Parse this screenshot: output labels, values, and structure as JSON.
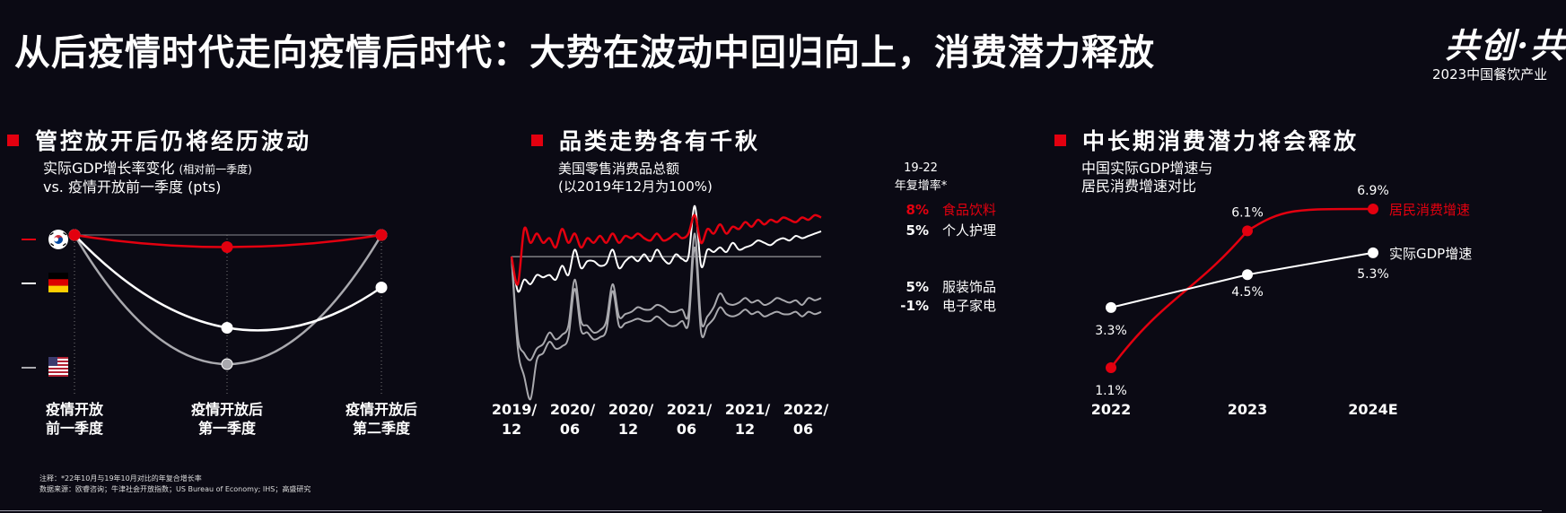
{
  "header": {
    "title": "从后疫情时代走向疫情后时代：大势在波动中回归向上，消费潜力释放",
    "logo_main": "共创·共",
    "logo_sub": "2023中国餐饮产业"
  },
  "colors": {
    "accent": "#e3000f",
    "background": "#0b0a14",
    "white": "#ffffff",
    "grey": "#a9a9ae"
  },
  "panel1": {
    "title": "管控放开后仍将经历波动",
    "subtitle_line1": "实际GDP增长率变化",
    "subtitle_small": "(相对前一季度)",
    "subtitle_line2": "vs. 疫情开放前一季度 (pts)",
    "flags": [
      "south-korea-flag-icon",
      "germany-flag-icon",
      "usa-flag-icon"
    ],
    "x_labels": [
      [
        "疫情开放",
        "前一季度"
      ],
      [
        "疫情开放后",
        "第一季度"
      ],
      [
        "疫情开放后",
        "第二季度"
      ]
    ]
  },
  "panel2": {
    "title": "品类走势各有千秋",
    "subtitle_line1": "美国零售消费品总额",
    "subtitle_line2": "(以2019年12月为100%)",
    "cagr_header_1": "19-22",
    "cagr_header_2": "年复增率*",
    "x_labels": [
      [
        "2019/",
        "12"
      ],
      [
        "2020/",
        "06"
      ],
      [
        "2020/",
        "12"
      ],
      [
        "2021/",
        "06"
      ],
      [
        "2021/",
        "12"
      ],
      [
        "2022/",
        "06"
      ]
    ],
    "legend": [
      {
        "rate": "8%",
        "name": "食品饮料",
        "color": "#e3000f"
      },
      {
        "rate": "5%",
        "name": "个人护理",
        "color": "#ffffff"
      },
      {
        "rate": "5%",
        "name": "服装饰品",
        "color": "#a9a9ae"
      },
      {
        "rate": "-1%",
        "name": "电子家电",
        "color": "#a9a9ae"
      }
    ]
  },
  "panel3": {
    "title": "中长期消费潜力将会释放",
    "subtitle_line1": "中国实际GDP增速与",
    "subtitle_line2": "居民消费增速对比"
  },
  "footnote": {
    "line1": "注释：*22年10月与19年10月对比的年复合增长率",
    "line2": "数据来源：欧睿咨询；牛津社会开放指数；US Bureau of Economy; IHS；高盛研究"
  },
  "chart_data": [
    {
      "type": "line",
      "title": "管控放开后仍将经历波动",
      "ylabel": "实际GDP增长率变化 vs. 疫情开放前一季度 (pts)",
      "categories": [
        "疫情开放前一季度",
        "疫情开放后第一季度",
        "疫情开放后第二季度"
      ],
      "legend_placement": "left (flags)",
      "series": [
        {
          "name": "South Korea",
          "values": [
            0,
            -0.3,
            0
          ]
        },
        {
          "name": "Germany",
          "values": [
            0,
            -2.3,
            -1.3
          ]
        },
        {
          "name": "USA",
          "values": [
            0,
            -3.2,
            0
          ]
        }
      ]
    },
    {
      "type": "line",
      "title": "品类走势各有千秋",
      "ylabel": "美国零售消费品总额 (以2019年12月为100%)",
      "x_ticks": [
        "2019/12",
        "2020/06",
        "2020/12",
        "2021/06",
        "2021/12",
        "2022/06"
      ],
      "baseline": 100,
      "ylim": [
        40,
        125
      ],
      "series": [
        {
          "name": "食品饮料",
          "cagr": "8%",
          "values": [
            100,
            88,
            112,
            106,
            110,
            106,
            108,
            104,
            112,
            106,
            110,
            104,
            108,
            106,
            109,
            106,
            110,
            106,
            109,
            108,
            110,
            108,
            107,
            110,
            107,
            108,
            110,
            108,
            110,
            118,
            106,
            112,
            110,
            114,
            110,
            113,
            112,
            115,
            113,
            116,
            114,
            116,
            115,
            117,
            116,
            115,
            117,
            116,
            118,
            117
          ]
        },
        {
          "name": "个人护理",
          "cagr": "5%",
          "values": [
            100,
            85,
            90,
            88,
            92,
            91,
            92,
            90,
            96,
            92,
            103,
            95,
            98,
            98,
            96,
            97,
            103,
            95,
            98,
            100,
            98,
            101,
            98,
            103,
            99,
            97,
            101,
            99,
            100,
            122,
            96,
            103,
            102,
            104,
            102,
            106,
            103,
            104,
            105,
            107,
            106,
            105,
            107,
            108,
            107,
            109,
            108,
            109,
            110,
            111
          ]
        },
        {
          "name": "服装饰品",
          "cagr": "5%",
          "values": [
            100,
            65,
            58,
            55,
            60,
            62,
            67,
            64,
            66,
            70,
            90,
            72,
            70,
            67,
            68,
            72,
            88,
            74,
            75,
            76,
            78,
            77,
            77,
            79,
            78,
            76,
            76,
            77,
            75,
            110,
            72,
            74,
            78,
            84,
            80,
            79,
            80,
            82,
            80,
            81,
            79,
            80,
            82,
            81,
            80,
            81,
            79,
            82,
            81,
            82
          ]
        },
        {
          "name": "电子家电",
          "cagr": "-1%",
          "values": [
            100,
            60,
            48,
            38,
            55,
            58,
            63,
            60,
            61,
            65,
            86,
            68,
            67,
            64,
            65,
            68,
            85,
            70,
            71,
            72,
            73,
            72,
            72,
            74,
            72,
            70,
            70,
            72,
            71,
            104,
            67,
            70,
            73,
            78,
            75,
            74,
            75,
            77,
            75,
            76,
            74,
            75,
            76,
            75,
            75,
            76,
            74,
            76,
            75,
            76
          ]
        }
      ]
    },
    {
      "type": "line",
      "title": "中长期消费潜力将会释放",
      "categories": [
        "2022",
        "2023",
        "2024E"
      ],
      "legend_placement": "right",
      "series": [
        {
          "name": "居民消费增速",
          "values": [
            1.1,
            6.1,
            6.9
          ],
          "labels": [
            "1.1%",
            "6.1%",
            "6.9%"
          ]
        },
        {
          "name": "实际GDP增速",
          "values": [
            3.3,
            4.5,
            5.3
          ],
          "labels": [
            "3.3%",
            "4.5%",
            "5.3%"
          ]
        }
      ]
    }
  ]
}
